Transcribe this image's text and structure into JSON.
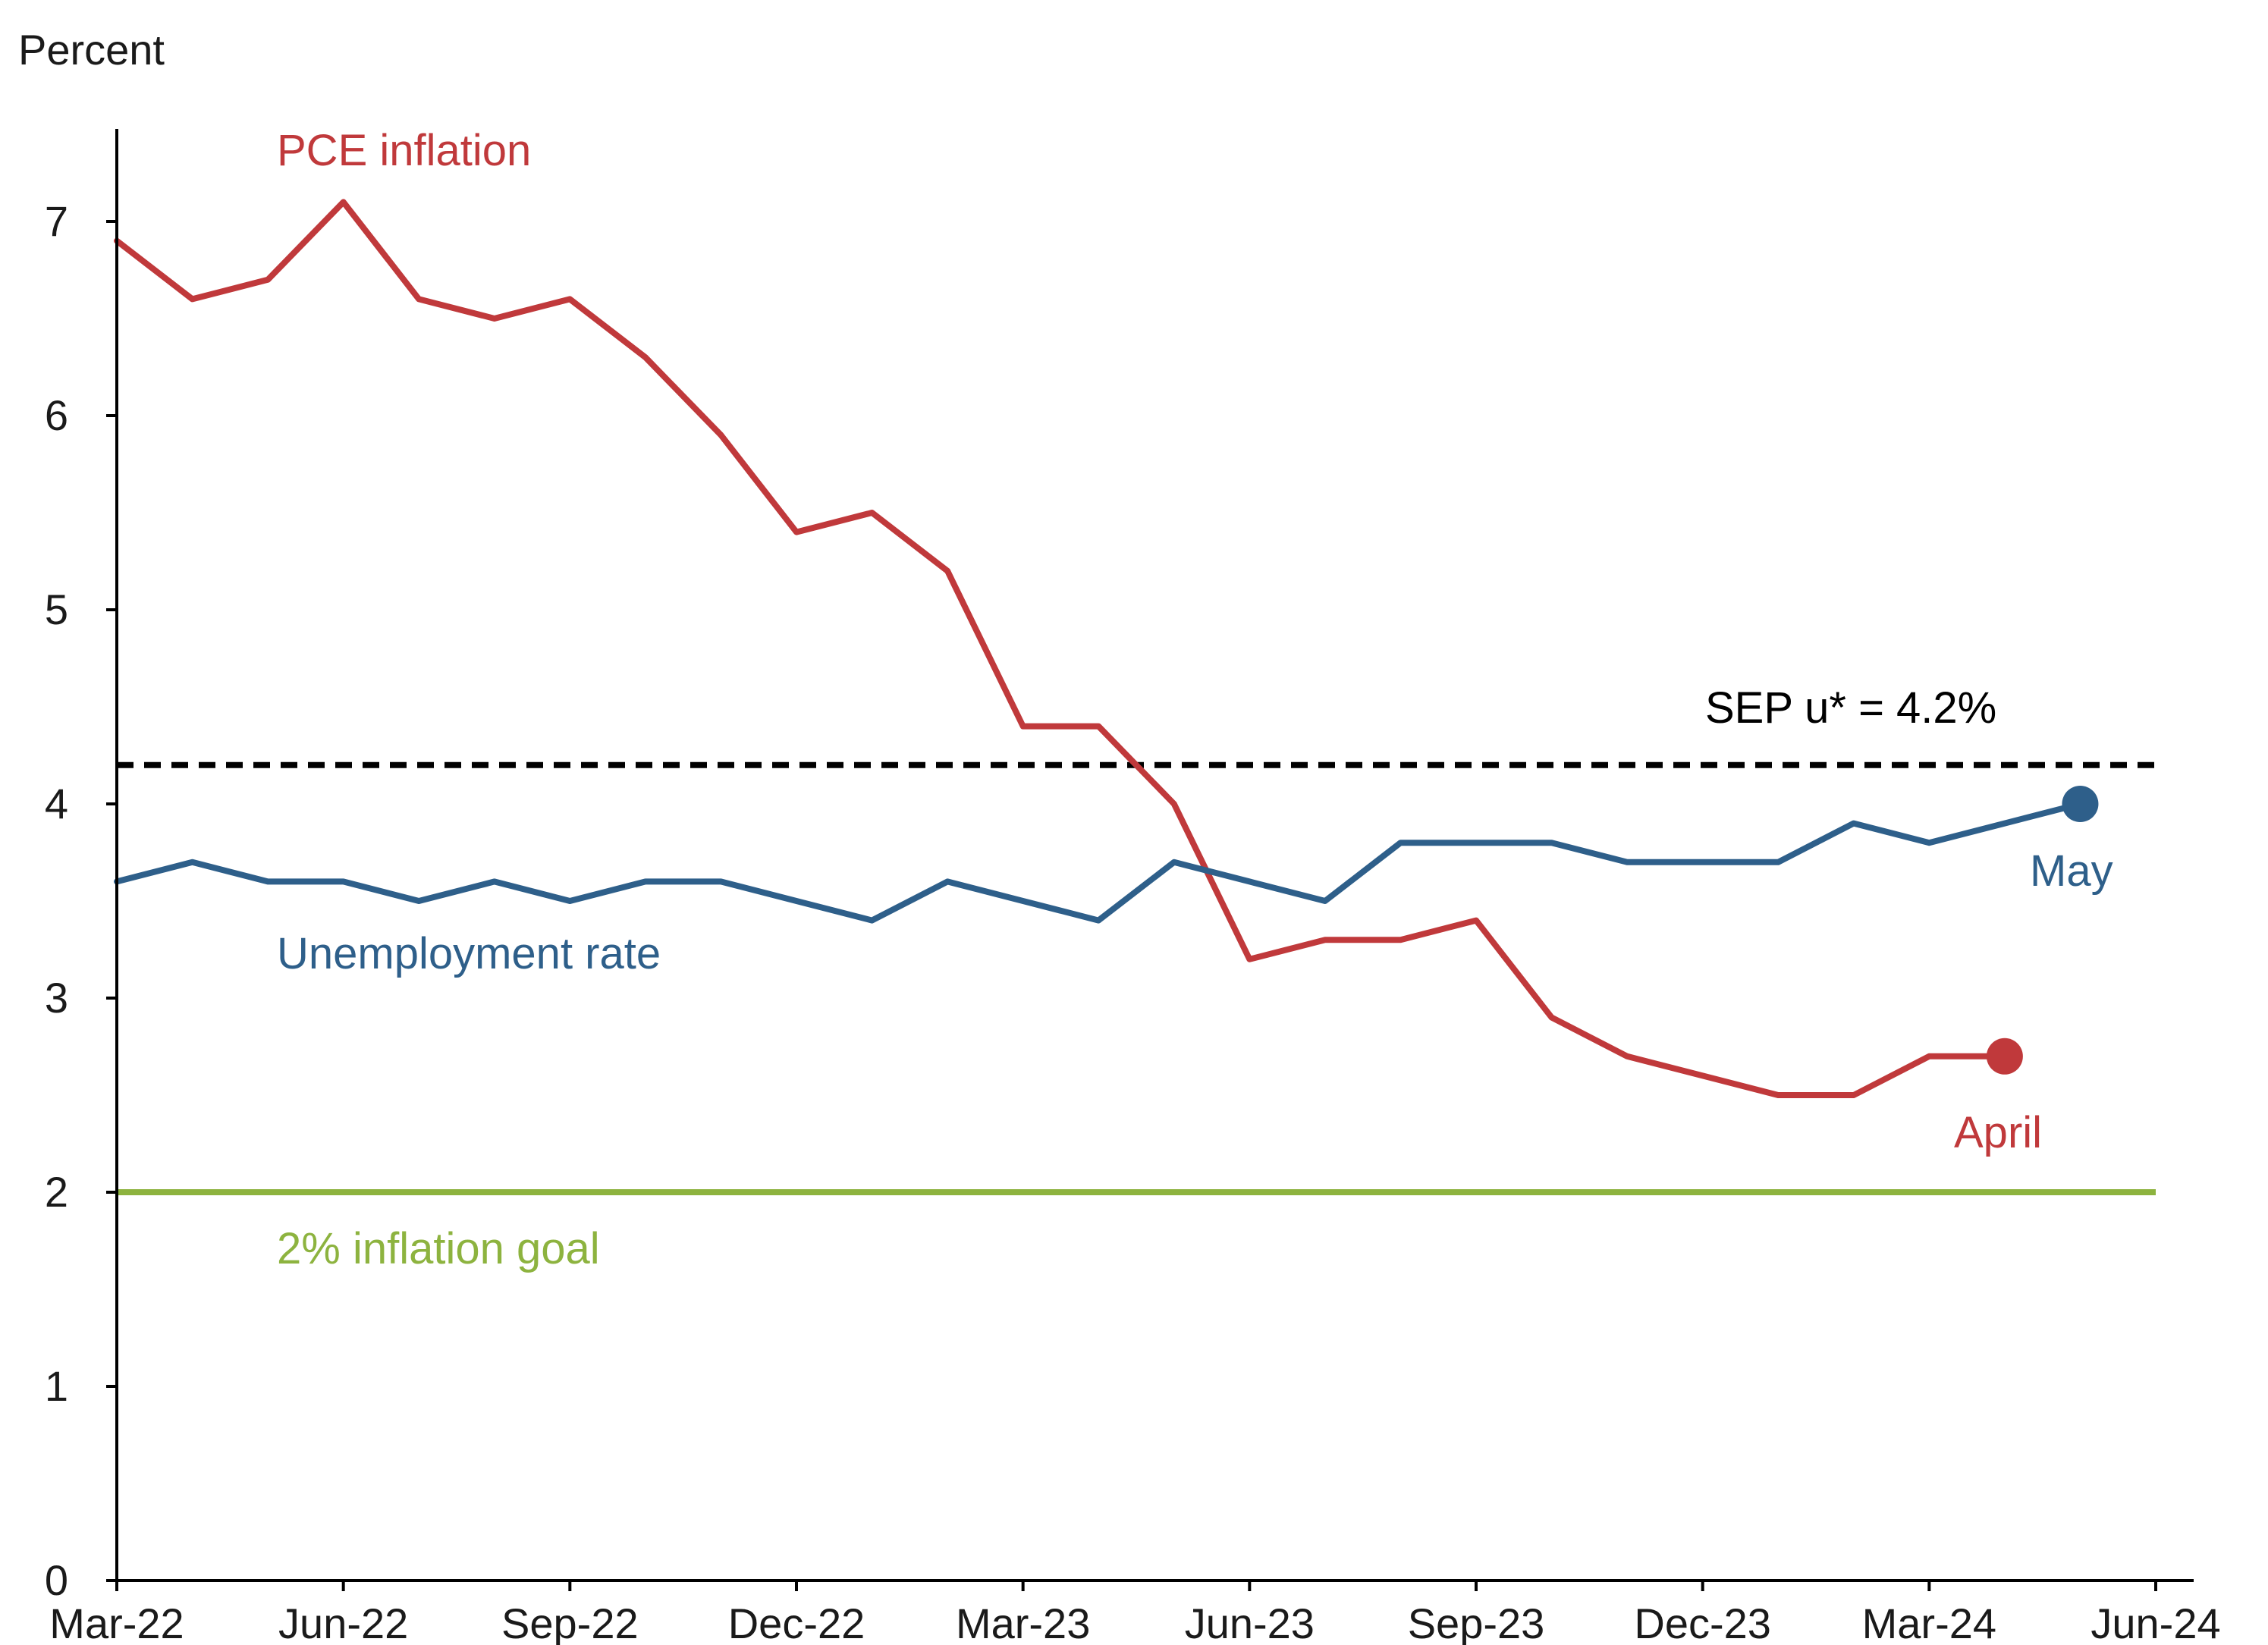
{
  "chart_data": {
    "type": "line",
    "ylabel": "Percent",
    "ylim": [
      0,
      7.5
    ],
    "y_ticks": [
      "0",
      "1",
      "2",
      "3",
      "4",
      "5",
      "6",
      "7"
    ],
    "x_tick_labels": [
      "Mar-22",
      "Jun-22",
      "Sep-22",
      "Dec-22",
      "Mar-23",
      "Jun-23",
      "Sep-23",
      "Dec-23",
      "Mar-24",
      "Jun-24"
    ],
    "x_start": "2022-03",
    "x_end": "2024-06",
    "grid": false,
    "colors": {
      "pce": "#c0393b",
      "unemployment": "#2e5f8a",
      "goal": "#8db33f",
      "sep": "#000000"
    },
    "series": [
      {
        "name": "PCE inflation",
        "x": [
          "2022-03",
          "2022-04",
          "2022-05",
          "2022-06",
          "2022-07",
          "2022-08",
          "2022-09",
          "2022-10",
          "2022-11",
          "2022-12",
          "2023-01",
          "2023-02",
          "2023-03",
          "2023-04",
          "2023-05",
          "2023-06",
          "2023-07",
          "2023-08",
          "2023-09",
          "2023-10",
          "2023-11",
          "2023-12",
          "2024-01",
          "2024-02",
          "2024-03",
          "2024-04"
        ],
        "values": [
          6.9,
          6.6,
          6.7,
          7.1,
          6.6,
          6.5,
          6.6,
          6.3,
          5.9,
          5.4,
          5.5,
          5.2,
          4.4,
          4.4,
          4.0,
          3.2,
          3.3,
          3.3,
          3.4,
          2.9,
          2.7,
          2.6,
          2.5,
          2.5,
          2.7,
          2.7
        ],
        "end_label": "April"
      },
      {
        "name": "Unemployment rate",
        "x": [
          "2022-03",
          "2022-04",
          "2022-05",
          "2022-06",
          "2022-07",
          "2022-08",
          "2022-09",
          "2022-10",
          "2022-11",
          "2022-12",
          "2023-01",
          "2023-02",
          "2023-03",
          "2023-04",
          "2023-05",
          "2023-06",
          "2023-07",
          "2023-08",
          "2023-09",
          "2023-10",
          "2023-11",
          "2023-12",
          "2024-01",
          "2024-02",
          "2024-03",
          "2024-04",
          "2024-05"
        ],
        "values": [
          3.6,
          3.7,
          3.6,
          3.6,
          3.5,
          3.6,
          3.5,
          3.6,
          3.6,
          3.5,
          3.4,
          3.6,
          3.5,
          3.4,
          3.7,
          3.6,
          3.5,
          3.8,
          3.8,
          3.8,
          3.7,
          3.7,
          3.7,
          3.9,
          3.8,
          3.9,
          4.0
        ],
        "end_label": "May"
      }
    ],
    "reference_lines": [
      {
        "name": "SEP u* = 4.2%",
        "value": 4.2,
        "style": "dashed"
      },
      {
        "name": "2% inflation goal",
        "value": 2.0,
        "style": "solid"
      }
    ]
  }
}
